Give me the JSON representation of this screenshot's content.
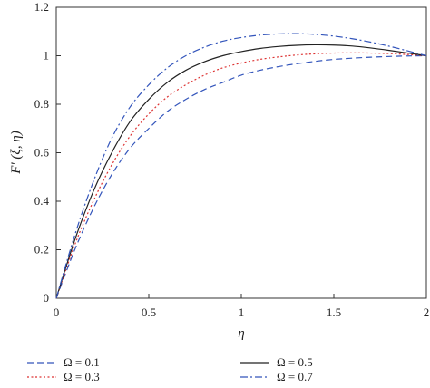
{
  "chart_data": {
    "type": "line",
    "title": "",
    "xlabel": "η",
    "ylabel": "F′ (ξ, η)",
    "xlim": [
      0,
      2
    ],
    "ylim": [
      0,
      1.2
    ],
    "xticks": [
      "0",
      "0.5",
      "1",
      "1.5",
      "2"
    ],
    "yticks": [
      "0",
      "0.2",
      "0.4",
      "0.6",
      "0.8",
      "1",
      "1.2"
    ],
    "grid": false,
    "legend_position": "bottom",
    "x": [
      0,
      0.1,
      0.2,
      0.3,
      0.4,
      0.5,
      0.6,
      0.7,
      0.8,
      0.9,
      1.0,
      1.1,
      1.2,
      1.3,
      1.4,
      1.5,
      1.6,
      1.7,
      1.8,
      1.9,
      2.0
    ],
    "series": [
      {
        "name": "Ω = 0.1",
        "style": "dashed",
        "color": "#3355bb",
        "values": [
          0,
          0.2,
          0.37,
          0.51,
          0.62,
          0.7,
          0.77,
          0.82,
          0.86,
          0.89,
          0.92,
          0.94,
          0.955,
          0.967,
          0.977,
          0.985,
          0.99,
          0.994,
          0.997,
          0.999,
          1.0
        ]
      },
      {
        "name": "Ω = 0.3",
        "style": "dotted",
        "color": "#dd3333",
        "values": [
          0,
          0.22,
          0.4,
          0.55,
          0.67,
          0.76,
          0.83,
          0.88,
          0.92,
          0.95,
          0.97,
          0.985,
          0.995,
          1.003,
          1.008,
          1.011,
          1.012,
          1.011,
          1.009,
          1.005,
          1.0
        ]
      },
      {
        "name": "Ω = 0.5",
        "style": "solid",
        "color": "#222222",
        "values": [
          0,
          0.24,
          0.44,
          0.6,
          0.73,
          0.82,
          0.89,
          0.94,
          0.975,
          1.0,
          1.017,
          1.03,
          1.038,
          1.043,
          1.045,
          1.044,
          1.04,
          1.032,
          1.022,
          1.011,
          1.0
        ]
      },
      {
        "name": "Ω = 0.7",
        "style": "dashdot",
        "color": "#3355bb",
        "values": [
          0,
          0.26,
          0.48,
          0.66,
          0.79,
          0.88,
          0.95,
          1.0,
          1.035,
          1.06,
          1.075,
          1.085,
          1.09,
          1.091,
          1.088,
          1.081,
          1.07,
          1.056,
          1.039,
          1.02,
          1.0
        ]
      }
    ]
  }
}
